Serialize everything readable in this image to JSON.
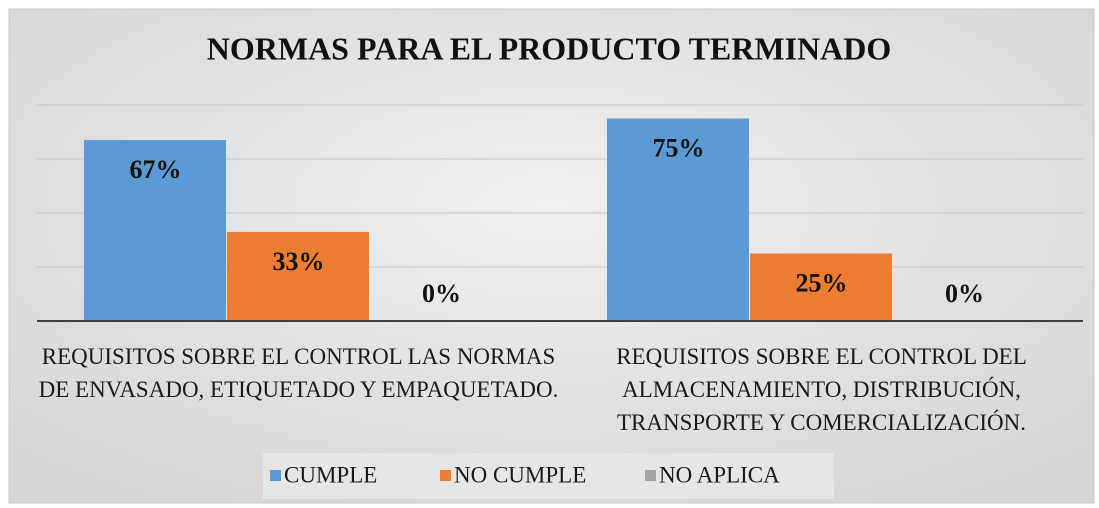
{
  "chart_data": {
    "type": "bar",
    "title": "NORMAS PARA EL PRODUCTO TERMINADO",
    "categories": [
      "REQUISITOS SOBRE EL CONTROL LAS NORMAS DE ENVASADO, ETIQUETADO Y EMPAQUETADO.",
      "REQUISITOS SOBRE EL CONTROL DEL ALMACENAMIENTO, DISTRIBUCIÓN, TRANSPORTE Y COMERCIALIZACIÓN."
    ],
    "series": [
      {
        "name": "CUMPLE",
        "color": "#5b9bd5",
        "values": [
          67,
          75
        ],
        "value_labels": [
          "67%",
          "75%"
        ]
      },
      {
        "name": "NO CUMPLE",
        "color": "#ed7d31",
        "values": [
          33,
          25
        ],
        "value_labels": [
          "33%",
          "25%"
        ]
      },
      {
        "name": "NO APLICA",
        "color": "#a5a5a5",
        "values": [
          0,
          0
        ],
        "value_labels": [
          "0%",
          "0%"
        ]
      }
    ],
    "ylim": [
      0,
      80
    ],
    "yticks": [
      0,
      20,
      40,
      60,
      80
    ],
    "grid": true,
    "legend": "bottom"
  }
}
